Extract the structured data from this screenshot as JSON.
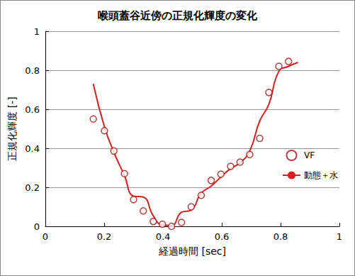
{
  "chart_data": {
    "type": "line",
    "title": "喉頭蓋谷近傍の正規化輝度の変化",
    "x_label": "経過時間 [sec]",
    "y_label": "正規化輝度 [-]",
    "xlim": [
      0,
      1
    ],
    "ylim": [
      0,
      1
    ],
    "xticks": [
      0,
      0.2,
      0.4,
      0.6,
      0.8,
      1
    ],
    "yticks": [
      0,
      0.2,
      0.4,
      0.6,
      0.8,
      1
    ],
    "grid": true,
    "legend": "right",
    "series": [
      {
        "name": "VF",
        "type": "scatter",
        "marker": "circle",
        "color": "#a01010",
        "x": [
          0.163,
          0.201,
          0.233,
          0.269,
          0.3,
          0.333,
          0.367,
          0.398,
          0.429,
          0.463,
          0.496,
          0.53,
          0.564,
          0.597,
          0.63,
          0.662,
          0.695,
          0.729,
          0.76,
          0.794,
          0.827
        ],
        "values": [
          0.55,
          0.49,
          0.386,
          0.27,
          0.137,
          0.079,
          0.025,
          0.011,
          0.0,
          0.02,
          0.1,
          0.159,
          0.235,
          0.267,
          0.307,
          0.329,
          0.368,
          0.451,
          0.686,
          0.82,
          0.845
        ]
      },
      {
        "name": "動態＋水",
        "type": "line",
        "line_style": "solid",
        "color": "#d62020",
        "x": [
          0.163,
          0.201,
          0.233,
          0.269,
          0.3,
          0.333,
          0.367,
          0.398,
          0.429,
          0.463,
          0.496,
          0.53,
          0.564,
          0.597,
          0.63,
          0.662,
          0.695,
          0.729,
          0.76,
          0.794,
          0.827,
          0.859
        ],
        "values": [
          0.73,
          0.51,
          0.38,
          0.26,
          0.155,
          0.15,
          0.054,
          0.007,
          0.004,
          0.072,
          0.083,
          0.17,
          0.206,
          0.253,
          0.296,
          0.325,
          0.386,
          0.54,
          0.625,
          0.794,
          0.82,
          0.84
        ]
      }
    ]
  }
}
